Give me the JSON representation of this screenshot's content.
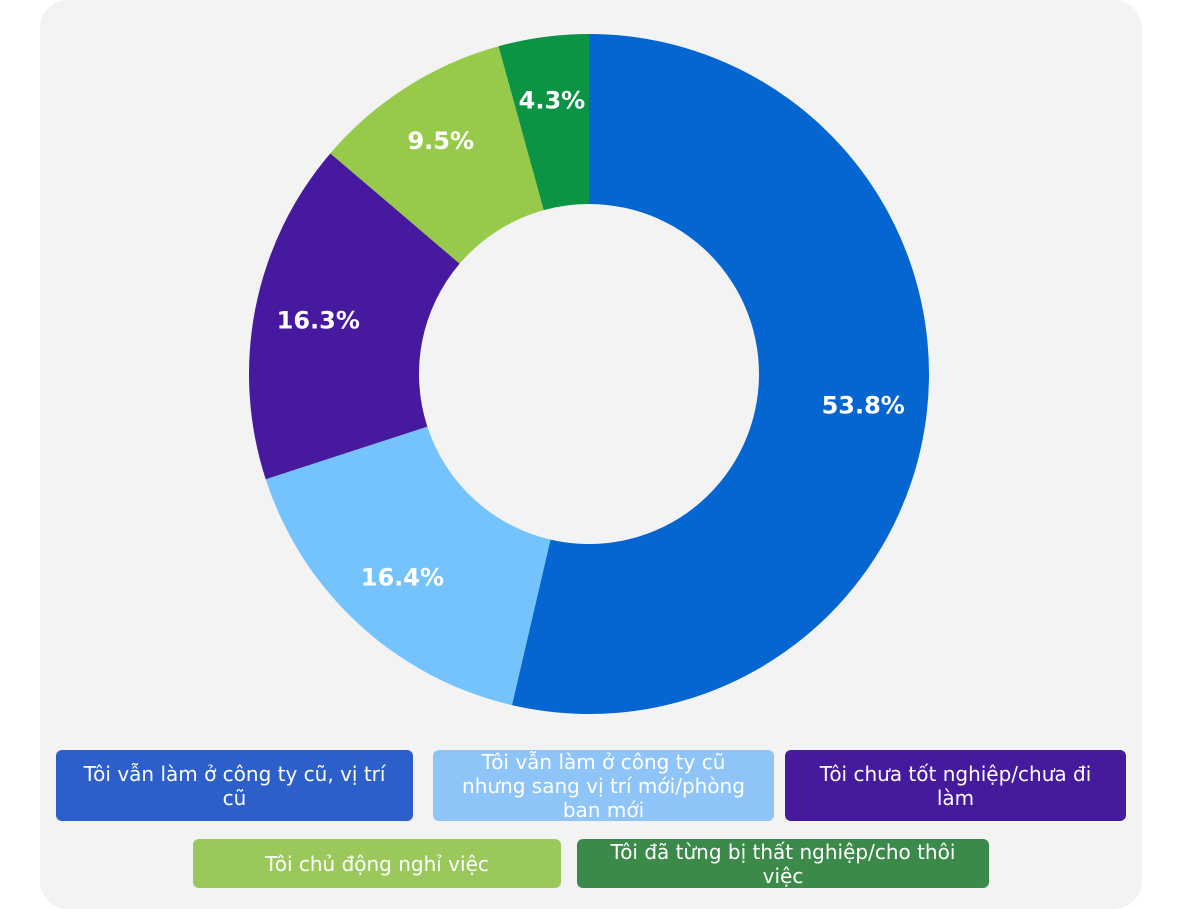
{
  "chart_data": {
    "type": "pie",
    "title": "",
    "donut": true,
    "start_angle_deg": 0,
    "direction": "clockwise",
    "legend_position": "bottom",
    "series": [
      {
        "name": "Tôi vẫn làm ở công ty cũ, vị trí cũ",
        "value": 53.8,
        "label": "53.8%",
        "color": "#0566d1",
        "legend_color": "#2c5fc9"
      },
      {
        "name": "Tôi vẫn làm ở công ty cũ nhưng sang vị trí mới/phòng ban mới",
        "value": 16.4,
        "label": "16.4%",
        "color": "#75c3fd",
        "legend_color": "#8ec4f7"
      },
      {
        "name": "Tôi chưa tốt nghiệp/chưa đi làm",
        "value": 16.3,
        "label": "16.3%",
        "color": "#47199e",
        "legend_color": "#461a9c"
      },
      {
        "name": "Tôi chủ động nghỉ việc",
        "value": 9.5,
        "label": "9.5%",
        "color": "#97ca4b",
        "legend_color": "#9bc85a"
      },
      {
        "name": "Tôi đã từng bị thất nghiệp/cho thôi việc",
        "value": 4.3,
        "label": "4.3%",
        "color": "#0b9444",
        "legend_color": "#3b8a4a"
      }
    ]
  }
}
